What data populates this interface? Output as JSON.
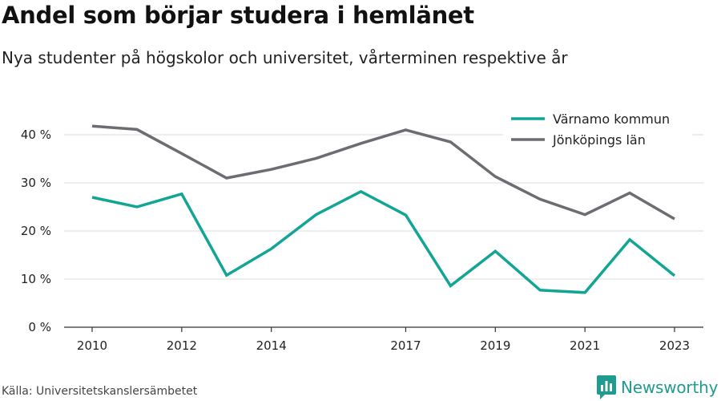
{
  "title": "Andel som börjar studera i hemlänet",
  "subtitle": "Nya studenter på högskolor och universitet, vårterminen respektive år",
  "source": "Källa: Universitetskanslersämbetet",
  "brand": {
    "name": "Newsworthy",
    "icon": "newsworthy-logo-icon",
    "color": "#1f9c8f"
  },
  "chart_data": {
    "type": "line",
    "title": "",
    "xlabel": "",
    "ylabel": "",
    "x": [
      2010,
      2011,
      2012,
      2013,
      2014,
      2015,
      2016,
      2017,
      2018,
      2019,
      2020,
      2021,
      2022,
      2023
    ],
    "xticks": [
      2010,
      2012,
      2014,
      2017,
      2019,
      2021,
      2023
    ],
    "yticks": [
      0,
      10,
      20,
      30,
      40
    ],
    "ytick_labels": [
      "0 %",
      "10 %",
      "20 %",
      "30 %",
      "40 %"
    ],
    "ylim": [
      0,
      45
    ],
    "grid": "horizontal",
    "legend_position": "top-right",
    "series": [
      {
        "name": "Värnamo kommun",
        "color": "#12a596",
        "values": [
          27.0,
          25.0,
          27.7,
          10.8,
          16.3,
          23.4,
          28.2,
          23.3,
          8.6,
          15.8,
          7.7,
          7.2,
          18.2,
          10.7
        ]
      },
      {
        "name": "Jönköpings län",
        "color": "#6d6c72",
        "values": [
          41.8,
          41.1,
          36.1,
          31.0,
          32.8,
          35.1,
          38.2,
          41.0,
          38.5,
          31.3,
          26.6,
          23.4,
          27.9,
          22.5
        ]
      }
    ]
  }
}
